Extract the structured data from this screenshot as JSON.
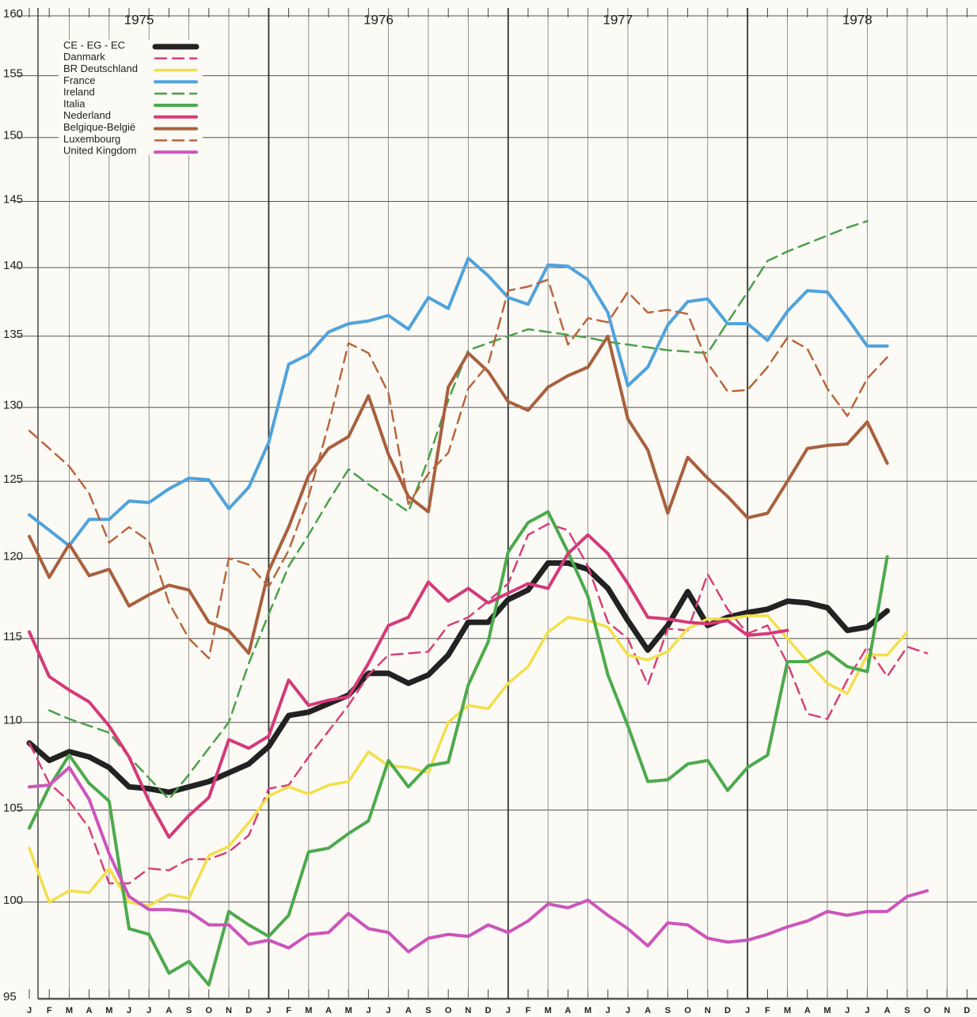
{
  "chart_data": {
    "type": "line",
    "log_y": true,
    "grid": true,
    "legend": "upper left",
    "year_labels": [
      "1975",
      "1976",
      "1977",
      "1978"
    ],
    "categories": [
      "J",
      "F",
      "M",
      "A",
      "M",
      "J",
      "J",
      "A",
      "S",
      "O",
      "N",
      "D",
      "J",
      "F",
      "M",
      "A",
      "M",
      "J",
      "J",
      "A",
      "S",
      "O",
      "N",
      "D",
      "J",
      "F",
      "M",
      "A",
      "M",
      "J",
      "J",
      "A",
      "S",
      "O",
      "N",
      "D",
      "J",
      "F",
      "M",
      "A",
      "M",
      "J",
      "J",
      "A",
      "S",
      "O",
      "N",
      "D"
    ],
    "ylim": [
      95,
      160
    ],
    "yticks": [
      95,
      100,
      105,
      110,
      115,
      120,
      125,
      130,
      135,
      140,
      145,
      150,
      155,
      160
    ],
    "series": [
      {
        "name": "CE - EG - EC",
        "color": "#222222",
        "dashed": false,
        "line_width": 7,
        "values": [
          108.8,
          107.8,
          108.3,
          108.0,
          107.4,
          106.3,
          106.2,
          106.0,
          106.3,
          106.6,
          107.1,
          107.6,
          108.6,
          110.4,
          110.6,
          111.1,
          111.6,
          112.9,
          112.9,
          112.3,
          112.8,
          114.0,
          116.0,
          116.0,
          117.4,
          118.0,
          119.7,
          119.7,
          119.3,
          118.1,
          116.1,
          114.3,
          115.8,
          117.9,
          115.8,
          116.3,
          116.6,
          116.8,
          117.3,
          117.2,
          116.9,
          115.5,
          115.7,
          116.7,
          null,
          null,
          null,
          null
        ]
      },
      {
        "name": "Danmark",
        "color": "#d6407a",
        "dashed": true,
        "line_width": 2.5,
        "values": [
          108.8,
          106.5,
          105.5,
          104.0,
          101.0,
          101.0,
          101.8,
          101.7,
          102.3,
          102.3,
          102.7,
          103.6,
          106.2,
          106.4,
          108.0,
          109.5,
          111.0,
          112.8,
          114.0,
          114.1,
          114.2,
          115.8,
          116.3,
          117.3,
          118.4,
          121.5,
          122.2,
          121.8,
          119.5,
          116.0,
          115.0,
          112.2,
          115.6,
          115.5,
          119.0,
          116.8,
          115.3,
          115.8,
          113.5,
          110.5,
          110.2,
          112.5,
          114.5,
          112.7,
          114.5,
          114.1,
          null,
          null
        ]
      },
      {
        "name": "BR Deutschland",
        "color": "#f2df4a",
        "dashed": false,
        "line_width": 3.5,
        "values": [
          102.9,
          100.0,
          100.6,
          100.5,
          101.8,
          100.0,
          99.8,
          100.4,
          100.2,
          102.5,
          103.0,
          104.3,
          105.8,
          106.3,
          105.9,
          106.4,
          106.6,
          108.3,
          107.5,
          107.4,
          107.1,
          110.0,
          111.0,
          110.8,
          112.3,
          113.3,
          115.4,
          116.3,
          116.1,
          115.7,
          114.0,
          113.7,
          114.2,
          115.6,
          116.2,
          116.2,
          116.4,
          116.4,
          115.0,
          113.6,
          112.3,
          111.7,
          114.0,
          114.0,
          115.4,
          null,
          null,
          null
        ]
      },
      {
        "name": "France",
        "color": "#4fa3dc",
        "dashed": false,
        "line_width": 4,
        "values": [
          122.8,
          121.8,
          120.8,
          122.5,
          122.5,
          123.7,
          123.6,
          124.5,
          125.2,
          125.1,
          123.2,
          124.6,
          127.6,
          133.0,
          133.7,
          135.3,
          135.9,
          136.1,
          136.5,
          135.5,
          137.8,
          137.0,
          140.7,
          139.4,
          137.8,
          137.3,
          140.2,
          140.1,
          139.1,
          136.7,
          131.5,
          132.8,
          135.8,
          137.5,
          137.7,
          135.9,
          135.9,
          134.7,
          136.8,
          138.3,
          138.2,
          136.3,
          134.3,
          134.3,
          null,
          null,
          null,
          null
        ]
      },
      {
        "name": "Ireland",
        "color": "#4aa04a",
        "dashed": true,
        "line_width": 2.5,
        "values": [
          null,
          110.7,
          110.2,
          109.8,
          109.4,
          108.0,
          106.8,
          105.6,
          107.0,
          108.5,
          110.0,
          113.5,
          116.5,
          119.5,
          121.5,
          123.7,
          125.8,
          124.8,
          123.9,
          123.0,
          126.5,
          130.5,
          134.0,
          134.5,
          135.0,
          135.5,
          135.3,
          135.1,
          134.9,
          134.6,
          134.4,
          134.2,
          134.0,
          133.9,
          133.8,
          136.0,
          138.2,
          140.5,
          141.2,
          141.8,
          142.4,
          143.0,
          143.5,
          null,
          null,
          null,
          null,
          null
        ]
      },
      {
        "name": "Italia",
        "color": "#4caa4c",
        "dashed": false,
        "line_width": 4,
        "values": [
          104.0,
          106.3,
          108.1,
          106.5,
          105.5,
          98.6,
          98.3,
          96.3,
          96.9,
          95.7,
          99.5,
          98.8,
          98.2,
          99.3,
          102.7,
          102.9,
          103.7,
          104.4,
          107.8,
          106.3,
          107.5,
          107.7,
          112.2,
          114.8,
          120.4,
          122.3,
          123.0,
          120.4,
          117.6,
          112.8,
          109.8,
          106.6,
          106.7,
          107.6,
          107.8,
          106.1,
          107.4,
          108.1,
          113.6,
          113.6,
          114.2,
          113.3,
          113.0,
          120.1,
          null,
          null,
          null,
          null
        ]
      },
      {
        "name": "Nederland",
        "color": "#d43a78",
        "dashed": false,
        "line_width": 4,
        "values": [
          115.4,
          112.7,
          111.9,
          111.2,
          109.8,
          108.0,
          105.5,
          103.5,
          104.7,
          105.7,
          109.0,
          108.5,
          109.2,
          112.5,
          111.0,
          111.3,
          111.5,
          113.5,
          115.8,
          116.3,
          118.5,
          117.3,
          118.1,
          117.2,
          117.8,
          118.4,
          118.1,
          120.3,
          121.5,
          120.3,
          118.4,
          116.3,
          116.2,
          116.0,
          115.9,
          116.1,
          115.2,
          115.3,
          115.5,
          null,
          null,
          null,
          null,
          null,
          null,
          null,
          null,
          null
        ]
      },
      {
        "name": "Belgique-België",
        "color": "#a8603e",
        "dashed": false,
        "line_width": 4,
        "values": [
          121.4,
          118.8,
          120.9,
          118.9,
          119.3,
          117.0,
          117.7,
          118.3,
          118.0,
          116.0,
          115.5,
          114.1,
          119.2,
          122.0,
          125.4,
          127.2,
          128.0,
          130.8,
          126.8,
          124.0,
          123.0,
          131.4,
          133.8,
          132.5,
          130.4,
          129.8,
          131.4,
          132.2,
          132.8,
          135.0,
          129.2,
          127.1,
          122.9,
          126.6,
          125.2,
          124.0,
          122.6,
          122.9,
          125.0,
          127.2,
          127.4,
          127.5,
          129.0,
          126.2,
          null,
          null,
          null,
          null
        ]
      },
      {
        "name": "Luxembourg",
        "color": "#b8663e",
        "dashed": true,
        "line_width": 2.5,
        "values": [
          128.4,
          127.2,
          126.0,
          124.2,
          121.0,
          122.0,
          121.1,
          117.2,
          115.0,
          113.8,
          120.0,
          119.6,
          118.2,
          120.5,
          124.0,
          128.8,
          134.5,
          133.8,
          131.0,
          123.5,
          125.5,
          126.9,
          131.3,
          133.0,
          138.3,
          138.6,
          139.1,
          134.4,
          136.3,
          136.0,
          138.2,
          136.7,
          136.9,
          136.6,
          133.1,
          131.1,
          131.2,
          132.8,
          134.9,
          134.1,
          131.3,
          129.4,
          132.0,
          133.5,
          null,
          null,
          null,
          null
        ]
      },
      {
        "name": "United Kingdom",
        "color": "#cc55bb",
        "dashed": false,
        "line_width": 4,
        "values": [
          106.3,
          106.4,
          107.4,
          105.6,
          102.6,
          100.3,
          99.6,
          99.6,
          99.5,
          98.8,
          98.8,
          97.8,
          98.0,
          97.6,
          98.3,
          98.4,
          99.4,
          98.6,
          98.4,
          97.4,
          98.1,
          98.3,
          98.2,
          98.8,
          98.4,
          99.0,
          99.9,
          99.7,
          100.1,
          99.3,
          98.6,
          97.7,
          98.9,
          98.8,
          98.1,
          97.9,
          98.0,
          98.3,
          98.7,
          99.0,
          99.5,
          99.3,
          99.5,
          99.5,
          100.3,
          100.6,
          null,
          null
        ]
      }
    ]
  }
}
